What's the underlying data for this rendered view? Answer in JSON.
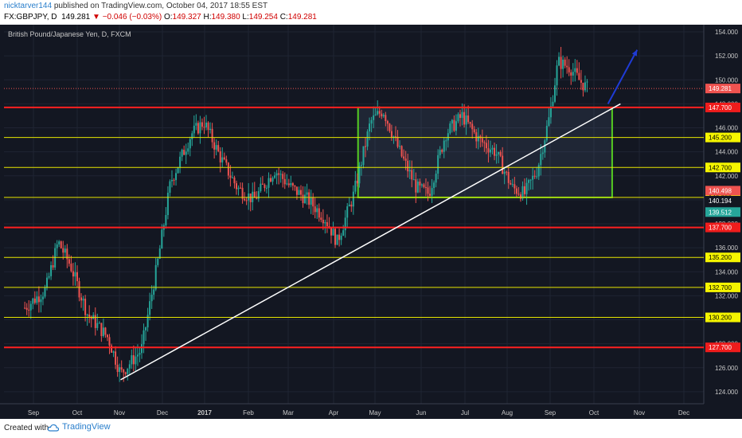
{
  "header": {
    "username": "nicktarver144",
    "published_text": "published on TradingView.com, October 04, 2017 18:55 EST",
    "symbol": "FX:GBPJPY, D",
    "last": "149.281",
    "change": "▼ −0.046 (−0.03%)",
    "o_label": "O:",
    "o_value": "149.327",
    "h_label": "H:",
    "h_value": "149.380",
    "l_label": "L:",
    "l_value": "149.254",
    "c_label": "C:",
    "c_value": "149.281"
  },
  "footer": {
    "created_with": "Created with",
    "brand": "TradingView"
  },
  "chart_data": {
    "type": "candlestick",
    "title": "British Pound/Japanese Yen, D, FXCM",
    "x_ticks": [
      "Sep",
      "Oct",
      "Nov",
      "Dec",
      "2017",
      "Feb",
      "Mar",
      "Apr",
      "May",
      "Jun",
      "Jul",
      "Aug",
      "Sep",
      "Oct",
      "Nov",
      "Dec"
    ],
    "y_ticks": [
      "124.000",
      "126.000",
      "128.000",
      "130.000",
      "132.000",
      "134.000",
      "136.000",
      "138.000",
      "140.000",
      "142.000",
      "144.000",
      "146.000",
      "148.000",
      "150.000",
      "152.000",
      "154.000"
    ],
    "ylim": [
      123.0,
      154.6
    ],
    "price_levels": [
      {
        "value": 147.7,
        "label": "147.700",
        "color": "#ff2020",
        "major": true
      },
      {
        "value": 145.2,
        "label": "145.200",
        "color": "#e6e600",
        "major": false
      },
      {
        "value": 142.7,
        "label": "142.700",
        "color": "#e6e600",
        "major": false
      },
      {
        "value": 140.2,
        "label": "140.200",
        "color": "#e6e600",
        "major": false
      },
      {
        "value": 137.7,
        "label": "137.700",
        "color": "#ff2020",
        "major": true
      },
      {
        "value": 135.2,
        "label": "135.200",
        "color": "#e6e600",
        "major": false
      },
      {
        "value": 132.7,
        "label": "132.700",
        "color": "#e6e600",
        "major": false
      },
      {
        "value": 130.2,
        "label": "130.200",
        "color": "#e6e600",
        "major": false
      },
      {
        "value": 127.7,
        "label": "127.700",
        "color": "#ff2020",
        "major": true
      }
    ],
    "price_badges": [
      {
        "value": 149.281,
        "label": "149.281",
        "bg": "#ef5350",
        "fg": "#ffffff"
      },
      {
        "value": 140.498,
        "label": "140.498",
        "bg": "#ef5350",
        "fg": "#ffffff"
      },
      {
        "value": 140.194,
        "label": "140.194",
        "bg": "#131722",
        "fg": "#ffffff"
      },
      {
        "value": 139.512,
        "label": "139.512",
        "bg": "#26a69a",
        "fg": "#ffffff"
      }
    ],
    "series_path": [
      [
        2016.65,
        131.0
      ],
      [
        2016.7,
        132.5
      ],
      [
        2016.73,
        136.5
      ],
      [
        2016.76,
        134.5
      ],
      [
        2016.8,
        130.5
      ],
      [
        2016.85,
        128.5
      ],
      [
        2016.88,
        125.5
      ],
      [
        2016.93,
        127.5
      ],
      [
        2016.97,
        135.0
      ],
      [
        2017.0,
        141.5
      ],
      [
        2017.05,
        145.5
      ],
      [
        2017.08,
        146.5
      ],
      [
        2017.12,
        143.5
      ],
      [
        2017.16,
        141.0
      ],
      [
        2017.2,
        140.0
      ],
      [
        2017.25,
        142.5
      ],
      [
        2017.29,
        141.0
      ],
      [
        2017.33,
        140.0
      ],
      [
        2017.37,
        138.5
      ],
      [
        2017.4,
        136.5
      ],
      [
        2017.44,
        140.5
      ],
      [
        2017.48,
        146.5
      ],
      [
        2017.51,
        147.5
      ],
      [
        2017.55,
        144.0
      ],
      [
        2017.59,
        141.0
      ],
      [
        2017.62,
        140.5
      ],
      [
        2017.66,
        145.5
      ],
      [
        2017.7,
        147.0
      ],
      [
        2017.74,
        145.0
      ],
      [
        2017.78,
        144.0
      ],
      [
        2017.82,
        141.0
      ],
      [
        2017.85,
        140.5
      ],
      [
        2017.88,
        142.5
      ],
      [
        2017.91,
        147.0
      ],
      [
        2017.93,
        151.5
      ],
      [
        2017.96,
        151.0
      ],
      [
        2017.98,
        150.0
      ],
      [
        2018.0,
        149.3
      ]
    ],
    "trendline": {
      "from": [
        2016.88,
        125.0
      ],
      "to": [
        2018.08,
        148.0
      ],
      "color": "#ffffff"
    },
    "range_box": {
      "x0": 2017.45,
      "x1": 2018.06,
      "y0": 140.2,
      "y1": 147.7,
      "color": "#55cc22"
    },
    "forecast_arrow": {
      "from": [
        2018.05,
        148.0
      ],
      "to": [
        2018.12,
        152.5
      ],
      "color": "#1f3bd6"
    },
    "grid": true,
    "price_scale": "right"
  }
}
